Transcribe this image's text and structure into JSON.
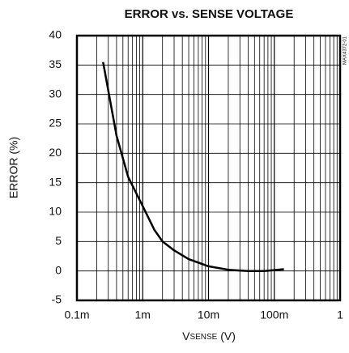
{
  "chart_data": {
    "type": "line",
    "title": "ERROR vs. SENSE VOLTAGE",
    "code": "MAX4372-01",
    "y_label": "ERROR (%)",
    "x_label": {
      "main": "V",
      "sub": "SENSE",
      "unit": " (V)"
    },
    "x": [
      0.00025,
      0.0004,
      0.0006,
      0.001,
      0.0015,
      0.002,
      0.003,
      0.005,
      0.01,
      0.02,
      0.04,
      0.07,
      0.14
    ],
    "values": [
      35.5,
      23,
      16,
      11,
      7,
      5,
      3.5,
      2,
      0.8,
      0.2,
      0,
      0,
      0.3
    ],
    "color": "#000000",
    "xscale": "log",
    "xlim": [
      0.0001,
      1
    ],
    "xticks": [
      {
        "value": 0.0001,
        "label": "0.1m"
      },
      {
        "value": 0.001,
        "label": "1m"
      },
      {
        "value": 0.01,
        "label": "10m"
      },
      {
        "value": 0.1,
        "label": "100m"
      },
      1
    ],
    "ylim": [
      -5,
      40
    ],
    "yticks": [
      -5,
      0,
      5,
      10,
      15,
      20,
      25,
      30,
      35,
      40
    ],
    "grid": true
  }
}
